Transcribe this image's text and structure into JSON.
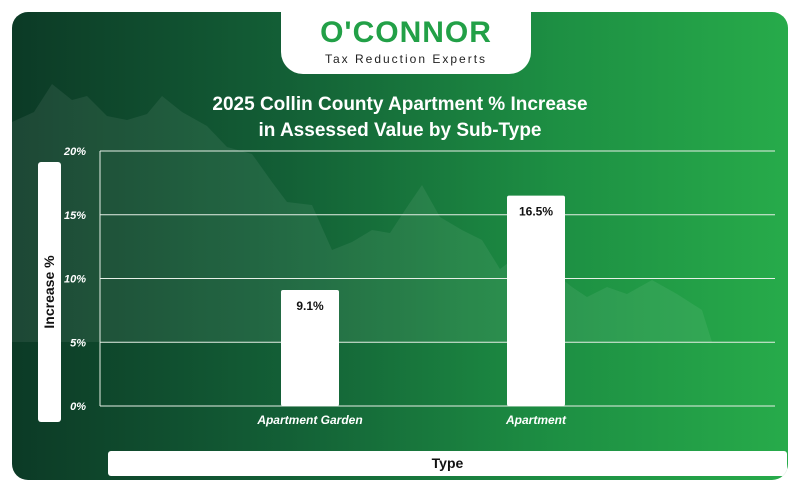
{
  "logo": {
    "name": "O'CONNOR",
    "tagline": "Tax Reduction Experts"
  },
  "colors": {
    "bar": "#ffffff",
    "grid": "#e6efe6",
    "accent": "#22a047"
  },
  "chart_data": {
    "type": "bar",
    "title_line1": "2025 Collin County Apartment % Increase",
    "title_line2": "in Assessed Value by Sub-Type",
    "xlabel": "Type",
    "ylabel": "Increase %",
    "categories": [
      "Apartment Garden",
      "Apartment"
    ],
    "values": [
      9.1,
      16.5
    ],
    "data_labels": [
      "9.1%",
      "16.5%"
    ],
    "ylim": [
      0,
      20
    ],
    "yticks": [
      0,
      5,
      10,
      15,
      20
    ],
    "ytick_labels": [
      "0%",
      "5%",
      "10%",
      "15%",
      "20%"
    ],
    "grid": true,
    "legend": "none"
  }
}
